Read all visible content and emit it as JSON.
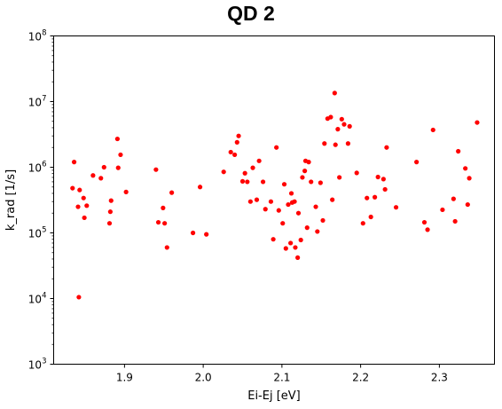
{
  "chart_data": {
    "type": "scatter",
    "title": "QD 2",
    "xlabel": "Ei-Ej [eV]",
    "ylabel": "k_rad [1/s]",
    "xlim": [
      1.81,
      2.37
    ],
    "ylim": [
      1000,
      100000000
    ],
    "yscale": "log",
    "grid": false,
    "marker_color": "#ff0000",
    "x_ticks": [
      1.9,
      2.0,
      2.1,
      2.2,
      2.3
    ],
    "x_tick_labels": [
      "1.9",
      "2.0",
      "2.1",
      "2.2",
      "2.3"
    ],
    "y_ticks": [
      1000,
      10000,
      100000,
      1000000,
      10000000,
      100000000
    ],
    "y_tick_labels": [
      {
        "base": "10",
        "exp": "3"
      },
      {
        "base": "10",
        "exp": "4"
      },
      {
        "base": "10",
        "exp": "5"
      },
      {
        "base": "10",
        "exp": "6"
      },
      {
        "base": "10",
        "exp": "7"
      },
      {
        "base": "10",
        "exp": "8"
      }
    ],
    "points": [
      {
        "x": 1.834,
        "y": 480000
      },
      {
        "x": 1.836,
        "y": 1200000
      },
      {
        "x": 1.841,
        "y": 250000
      },
      {
        "x": 1.842,
        "y": 10500
      },
      {
        "x": 1.843,
        "y": 450000
      },
      {
        "x": 1.848,
        "y": 340000
      },
      {
        "x": 1.849,
        "y": 170000
      },
      {
        "x": 1.852,
        "y": 260000
      },
      {
        "x": 1.86,
        "y": 750000
      },
      {
        "x": 1.87,
        "y": 680000
      },
      {
        "x": 1.874,
        "y": 1000000
      },
      {
        "x": 1.881,
        "y": 140000
      },
      {
        "x": 1.882,
        "y": 210000
      },
      {
        "x": 1.883,
        "y": 310000
      },
      {
        "x": 1.891,
        "y": 2700000
      },
      {
        "x": 1.892,
        "y": 980000
      },
      {
        "x": 1.895,
        "y": 1550000
      },
      {
        "x": 1.902,
        "y": 420000
      },
      {
        "x": 1.94,
        "y": 920000
      },
      {
        "x": 1.943,
        "y": 145000
      },
      {
        "x": 1.949,
        "y": 240000
      },
      {
        "x": 1.951,
        "y": 140000
      },
      {
        "x": 1.954,
        "y": 60000
      },
      {
        "x": 1.96,
        "y": 410000
      },
      {
        "x": 1.987,
        "y": 100000
      },
      {
        "x": 1.996,
        "y": 500000
      },
      {
        "x": 2.004,
        "y": 95000
      },
      {
        "x": 2.026,
        "y": 850000
      },
      {
        "x": 2.035,
        "y": 1700000
      },
      {
        "x": 2.04,
        "y": 1550000
      },
      {
        "x": 2.043,
        "y": 2400000
      },
      {
        "x": 2.045,
        "y": 3000000
      },
      {
        "x": 2.05,
        "y": 610000
      },
      {
        "x": 2.053,
        "y": 810000
      },
      {
        "x": 2.056,
        "y": 600000
      },
      {
        "x": 2.06,
        "y": 300000
      },
      {
        "x": 2.063,
        "y": 980000
      },
      {
        "x": 2.068,
        "y": 320000
      },
      {
        "x": 2.071,
        "y": 1250000
      },
      {
        "x": 2.076,
        "y": 600000
      },
      {
        "x": 2.079,
        "y": 230000
      },
      {
        "x": 2.086,
        "y": 300000
      },
      {
        "x": 2.089,
        "y": 80000
      },
      {
        "x": 2.093,
        "y": 2000000
      },
      {
        "x": 2.096,
        "y": 220000
      },
      {
        "x": 2.101,
        "y": 140000
      },
      {
        "x": 2.103,
        "y": 550000
      },
      {
        "x": 2.105,
        "y": 58000
      },
      {
        "x": 2.108,
        "y": 270000
      },
      {
        "x": 2.111,
        "y": 70000
      },
      {
        "x": 2.112,
        "y": 400000
      },
      {
        "x": 2.113,
        "y": 290000
      },
      {
        "x": 2.116,
        "y": 300000
      },
      {
        "x": 2.117,
        "y": 60000
      },
      {
        "x": 2.12,
        "y": 42000
      },
      {
        "x": 2.121,
        "y": 200000
      },
      {
        "x": 2.124,
        "y": 78000
      },
      {
        "x": 2.126,
        "y": 700000
      },
      {
        "x": 2.129,
        "y": 880000
      },
      {
        "x": 2.13,
        "y": 1250000
      },
      {
        "x": 2.132,
        "y": 120000
      },
      {
        "x": 2.134,
        "y": 1200000
      },
      {
        "x": 2.137,
        "y": 600000
      },
      {
        "x": 2.143,
        "y": 250000
      },
      {
        "x": 2.145,
        "y": 105000
      },
      {
        "x": 2.149,
        "y": 580000
      },
      {
        "x": 2.152,
        "y": 155000
      },
      {
        "x": 2.154,
        "y": 2300000
      },
      {
        "x": 2.158,
        "y": 5500000
      },
      {
        "x": 2.162,
        "y": 5800000
      },
      {
        "x": 2.164,
        "y": 320000
      },
      {
        "x": 2.167,
        "y": 13500000
      },
      {
        "x": 2.168,
        "y": 2200000
      },
      {
        "x": 2.171,
        "y": 3800000
      },
      {
        "x": 2.173,
        "y": 700000
      },
      {
        "x": 2.176,
        "y": 5400000
      },
      {
        "x": 2.179,
        "y": 4500000
      },
      {
        "x": 2.184,
        "y": 2300000
      },
      {
        "x": 2.186,
        "y": 4200000
      },
      {
        "x": 2.195,
        "y": 820000
      },
      {
        "x": 2.203,
        "y": 140000
      },
      {
        "x": 2.208,
        "y": 340000
      },
      {
        "x": 2.213,
        "y": 175000
      },
      {
        "x": 2.218,
        "y": 350000
      },
      {
        "x": 2.222,
        "y": 710000
      },
      {
        "x": 2.229,
        "y": 660000
      },
      {
        "x": 2.231,
        "y": 460000
      },
      {
        "x": 2.233,
        "y": 2000000
      },
      {
        "x": 2.245,
        "y": 245000
      },
      {
        "x": 2.271,
        "y": 1200000
      },
      {
        "x": 2.281,
        "y": 145000
      },
      {
        "x": 2.285,
        "y": 112000
      },
      {
        "x": 2.292,
        "y": 3700000
      },
      {
        "x": 2.304,
        "y": 225000
      },
      {
        "x": 2.318,
        "y": 330000
      },
      {
        "x": 2.32,
        "y": 150000
      },
      {
        "x": 2.324,
        "y": 1750000
      },
      {
        "x": 2.333,
        "y": 960000
      },
      {
        "x": 2.336,
        "y": 270000
      },
      {
        "x": 2.338,
        "y": 680000
      },
      {
        "x": 2.348,
        "y": 4800000
      }
    ]
  }
}
